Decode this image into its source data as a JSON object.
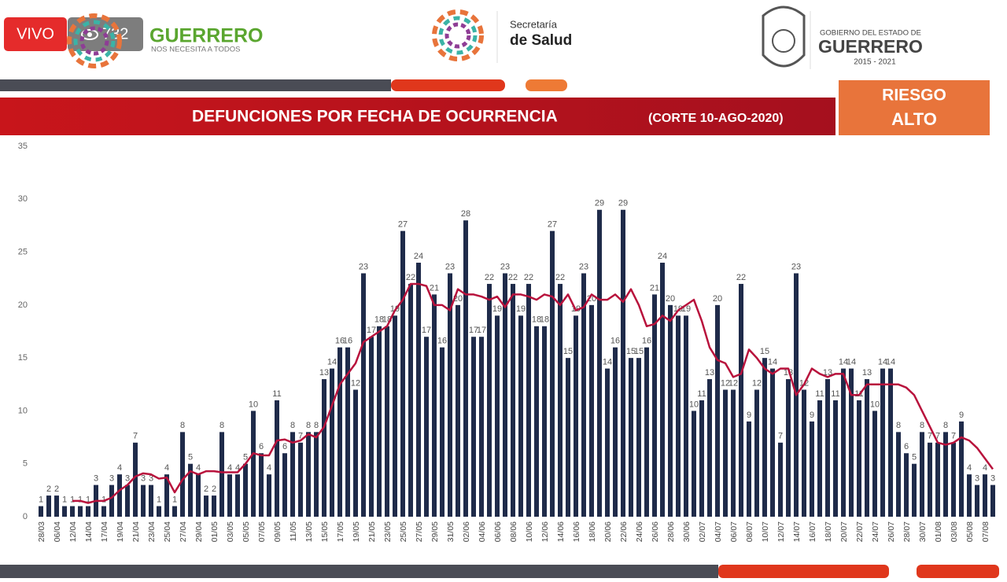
{
  "header": {
    "live": "VIVO",
    "viewers": "732",
    "brand": "GUERRERO",
    "slogan": "NOS NECESITA A TODOS",
    "secretaria": "Secretaría",
    "salud": "de Salud",
    "gov_line": "GOBIERNO DEL ESTADO DE",
    "gov_name": "GUERRERO",
    "gov_years": "2015 - 2021",
    "risk": [
      "RIESGO",
      "ALTO"
    ]
  },
  "chart_data": {
    "type": "bar",
    "title": "DEFUNCIONES POR FECHA DE OCURRENCIA",
    "subtitle": "(CORTE 10-AGO-2020)",
    "categories": [
      "28/03",
      null,
      "06/04",
      null,
      "12/04",
      null,
      "14/04",
      null,
      "17/04",
      null,
      "19/04",
      null,
      "21/04",
      null,
      "23/04",
      null,
      "25/04",
      null,
      "27/04",
      null,
      "29/04",
      null,
      "01/05",
      null,
      "03/05",
      null,
      "05/05",
      null,
      "07/05",
      null,
      "09/05",
      null,
      "11/05",
      null,
      "13/05",
      null,
      "15/05",
      null,
      "17/05",
      null,
      "19/05",
      null,
      "21/05",
      null,
      "23/05",
      null,
      "25/05",
      null,
      "27/05",
      null,
      "29/05",
      null,
      "31/05",
      null,
      "02/06",
      null,
      "04/06",
      null,
      "06/06",
      null,
      "08/06",
      null,
      "10/06",
      null,
      "12/06",
      null,
      "14/06",
      null,
      "16/06",
      null,
      "18/06",
      null,
      "20/06",
      null,
      "22/06",
      null,
      "24/06",
      null,
      "26/06",
      null,
      "28/06",
      null,
      "30/06",
      null,
      "02/07",
      null,
      "04/07",
      null,
      "06/07",
      null,
      "08/07",
      null,
      "10/07",
      null,
      "12/07",
      null,
      "14/07",
      null,
      "16/07",
      null,
      "18/07",
      null,
      "20/07",
      null,
      "22/07",
      null,
      "24/07",
      null,
      "26/07",
      null,
      "28/07",
      null,
      "30/07",
      null,
      "01/08",
      null,
      "03/08",
      null,
      "05/08",
      null,
      "07/08",
      null
    ],
    "series": [
      {
        "type": "bar",
        "color": "#1f2b4a",
        "values": [
          1,
          2,
          2,
          1,
          1,
          1,
          1,
          3,
          1,
          3,
          4,
          3,
          7,
          3,
          3,
          1,
          4,
          1,
          8,
          5,
          4,
          2,
          2,
          8,
          4,
          4,
          5,
          10,
          6,
          4,
          11,
          6,
          8,
          7,
          8,
          8,
          13,
          14,
          16,
          16,
          12,
          23,
          17,
          18,
          18,
          19,
          27,
          22,
          24,
          17,
          21,
          16,
          23,
          20,
          28,
          17,
          17,
          22,
          19,
          23,
          22,
          19,
          22,
          18,
          18,
          27,
          22,
          15,
          19,
          23,
          20,
          29,
          14,
          16,
          29,
          15,
          15,
          16,
          21,
          24,
          20,
          19,
          19,
          10,
          11,
          13,
          20,
          12,
          12,
          22,
          9,
          12,
          15,
          14,
          7,
          13,
          23,
          12,
          9,
          11,
          13,
          11,
          14,
          14,
          11,
          13,
          10,
          14,
          14,
          8,
          6,
          5,
          8,
          7,
          7,
          8,
          7,
          9,
          4,
          3,
          4,
          3
        ]
      },
      {
        "type": "line",
        "color": "#b8123c",
        "values": [
          null,
          null,
          null,
          null,
          1.5,
          1.5,
          1.3,
          1.5,
          1.5,
          1.8,
          2.5,
          3,
          3.8,
          4.1,
          4,
          3.6,
          3.7,
          2.3,
          3.5,
          4.3,
          4,
          4.3,
          4.3,
          4.2,
          4.2,
          4.2,
          5,
          6,
          5.8,
          5.8,
          7.2,
          7.3,
          7,
          7.2,
          7.8,
          7.5,
          8.5,
          10.5,
          12.5,
          13.5,
          14.5,
          16.5,
          17,
          17.5,
          18,
          19.5,
          20.5,
          22,
          22,
          21.8,
          20,
          20,
          19.5,
          21.5,
          21,
          21,
          20.8,
          20.5,
          20.8,
          19.8,
          21,
          21,
          20.8,
          20.5,
          21,
          20.8,
          20,
          21,
          19.5,
          19.8,
          21,
          20.5,
          20.5,
          21,
          20.3,
          21.5,
          20,
          18,
          18.2,
          19,
          18.5,
          19.5,
          20,
          20.5,
          18.5,
          16,
          14.8,
          14.5,
          13.2,
          13.5,
          15.8,
          15,
          14,
          13.5,
          14,
          14,
          11.5,
          12.5,
          14,
          13.5,
          13.2,
          13.5,
          13.5,
          11.5,
          11.5,
          12.5,
          12.5,
          12.5,
          12.5,
          12.5,
          12.2,
          11.5,
          10,
          8.5,
          7,
          6.8,
          7,
          7.5,
          7.2,
          6.5,
          5.5,
          4.5
        ]
      }
    ],
    "ylim": [
      0,
      35
    ],
    "yticks": [
      0,
      5,
      10,
      15,
      20,
      25,
      30,
      35
    ],
    "grid": false
  }
}
